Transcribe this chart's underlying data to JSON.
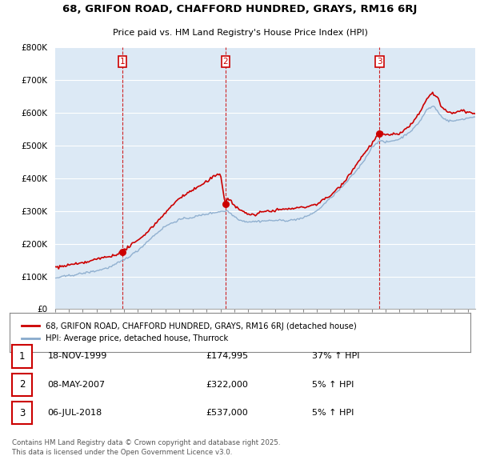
{
  "title_line1": "68, GRIFON ROAD, CHAFFORD HUNDRED, GRAYS, RM16 6RJ",
  "title_line2": "Price paid vs. HM Land Registry's House Price Index (HPI)",
  "ylim": [
    0,
    800000
  ],
  "yticks": [
    0,
    100000,
    200000,
    300000,
    400000,
    500000,
    600000,
    700000,
    800000
  ],
  "ytick_labels": [
    "£0",
    "£100K",
    "£200K",
    "£300K",
    "£400K",
    "£500K",
    "£600K",
    "£700K",
    "£800K"
  ],
  "red_color": "#cc0000",
  "blue_color": "#88aacc",
  "background_color": "#dce9f5",
  "grid_color": "#ffffff",
  "legend_label_red": "68, GRIFON ROAD, CHAFFORD HUNDRED, GRAYS, RM16 6RJ (detached house)",
  "legend_label_blue": "HPI: Average price, detached house, Thurrock",
  "sale_prices": [
    174995,
    322000,
    537000
  ],
  "sale_labels": [
    "1",
    "2",
    "3"
  ],
  "sale_pct": [
    "37% ↑ HPI",
    "5% ↑ HPI",
    "5% ↑ HPI"
  ],
  "sale_date_str": [
    "18-NOV-1999",
    "08-MAY-2007",
    "06-JUL-2018"
  ],
  "sale_price_str": [
    "£174,995",
    "£322,000",
    "£537,000"
  ],
  "footnote": "Contains HM Land Registry data © Crown copyright and database right 2025.\nThis data is licensed under the Open Government Licence v3.0.",
  "xlim_start": 1995.0,
  "xlim_end": 2025.5
}
